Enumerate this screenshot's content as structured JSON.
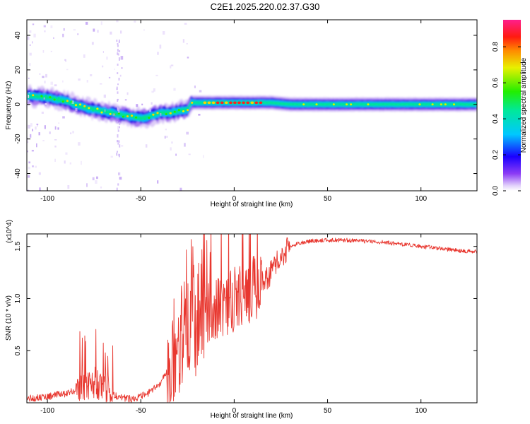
{
  "title": "C2E1.2025.220.02.37.G30",
  "colors": {
    "snr_line": "#e8372f",
    "frame": "#000000"
  },
  "chart_data": [
    {
      "type": "heatmap",
      "name": "spectrogram",
      "xlabel": "Height of straight line (km)",
      "ylabel": "Frequency (Hz)",
      "xlim": [
        -111,
        130
      ],
      "ylim": [
        -50,
        49
      ],
      "x_ticks": [
        -100,
        -50,
        0,
        50,
        100
      ],
      "y_ticks": [
        -40,
        -20,
        0,
        20,
        40
      ],
      "colorbar": {
        "label": "Normalized spectral amplitude",
        "range": [
          0,
          0.95
        ],
        "ticks": [
          "0.0",
          "0.2",
          "0.4",
          "0.6",
          "0.8"
        ],
        "colormap": "rainbow (violet-blue-cyan-green-yellow-orange-red-magenta)"
      },
      "ridge": {
        "description": "spectral ridge frequency vs height",
        "x": [
          -111,
          -100,
          -90,
          -80,
          -70,
          -60,
          -50,
          -45,
          -40,
          -35,
          -30,
          -25,
          -23,
          -20,
          -10,
          0,
          10,
          20,
          30,
          50,
          70,
          90,
          110,
          130
        ],
        "y": [
          5,
          4,
          2,
          -2,
          -4,
          -6,
          -8,
          -7,
          -5,
          -5,
          -4,
          -3,
          1,
          1,
          1,
          1,
          1,
          1,
          0,
          0,
          0,
          0,
          0,
          0
        ],
        "peak_region_x": [
          -18,
          15
        ]
      }
    },
    {
      "type": "line",
      "name": "snr",
      "xlabel": "Height of straight line (km)",
      "ylabel": "SNR (10 * v/v)",
      "y_multiplier": "(x10^4)",
      "xlim": [
        -111,
        130
      ],
      "ylim": [
        0,
        1.62
      ],
      "x_ticks": [
        -100,
        -50,
        0,
        50,
        100
      ],
      "y_ticks": [
        0.5,
        1.0,
        1.5
      ],
      "y_tick_labels": [
        "0.5",
        "1.0",
        "1.5"
      ],
      "envelope": {
        "x": [
          -111,
          -100,
          -90,
          -85,
          -80,
          -75,
          -70,
          -65,
          -60,
          -55,
          -50,
          -45,
          -40,
          -36,
          -33,
          -30,
          -27,
          -24,
          -20,
          -15,
          -10,
          -5,
          0,
          5,
          10,
          15,
          20,
          25,
          30,
          35,
          40,
          50,
          60,
          70,
          80,
          90,
          100,
          110,
          120,
          130
        ],
        "y": [
          0.04,
          0.06,
          0.09,
          0.12,
          0.18,
          0.2,
          0.16,
          0.08,
          0.05,
          0.04,
          0.06,
          0.1,
          0.18,
          0.3,
          0.5,
          0.6,
          0.7,
          0.75,
          0.8,
          0.85,
          0.9,
          0.95,
          1.0,
          1.05,
          1.1,
          1.15,
          1.25,
          1.4,
          1.5,
          1.53,
          1.55,
          1.56,
          1.56,
          1.55,
          1.54,
          1.52,
          1.5,
          1.48,
          1.46,
          1.45
        ]
      }
    }
  ]
}
